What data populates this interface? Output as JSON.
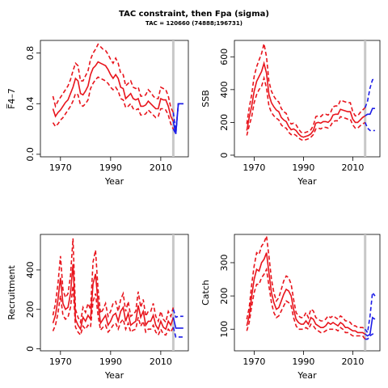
{
  "header": {
    "title": "TAC constraint, then Fpa (sigma)",
    "subtitle": "TAC = 120660 (74888;196731)"
  },
  "colors": {
    "historic": "#e8141c",
    "forecast": "#1c1ce8",
    "assessment_year_line": "#c8c8c8"
  },
  "chart_data": [
    {
      "type": "line",
      "id": "fbar",
      "xlabel": "Year",
      "ylabel": "F̅4–7",
      "xlim": [
        1962,
        2021
      ],
      "ylim": [
        -0.02,
        0.9
      ],
      "xticks": [
        1970,
        1990,
        2010
      ],
      "yticks": [
        0.0,
        0.4,
        0.8
      ],
      "ytick_labels": [
        "0.0",
        "0.4",
        "0.8"
      ],
      "assessment_year": 2015,
      "historic": {
        "x": [
          1967,
          1968,
          1969,
          1970,
          1971,
          1972,
          1973,
          1974,
          1975,
          1976,
          1977,
          1978,
          1979,
          1980,
          1981,
          1982,
          1983,
          1984,
          1985,
          1986,
          1987,
          1988,
          1989,
          1990,
          1991,
          1992,
          1993,
          1994,
          1995,
          1996,
          1997,
          1998,
          1999,
          2000,
          2001,
          2002,
          2003,
          2004,
          2005,
          2006,
          2007,
          2008,
          2009,
          2010,
          2011,
          2012,
          2013,
          2014,
          2015
        ],
        "median": [
          0.36,
          0.3,
          0.33,
          0.35,
          0.38,
          0.41,
          0.43,
          0.48,
          0.53,
          0.6,
          0.58,
          0.48,
          0.47,
          0.5,
          0.54,
          0.63,
          0.68,
          0.7,
          0.73,
          0.72,
          0.71,
          0.7,
          0.67,
          0.63,
          0.6,
          0.63,
          0.6,
          0.53,
          0.52,
          0.44,
          0.46,
          0.48,
          0.44,
          0.43,
          0.44,
          0.38,
          0.38,
          0.39,
          0.42,
          0.4,
          0.38,
          0.36,
          0.36,
          0.44,
          0.43,
          0.43,
          0.38,
          0.3,
          0.26
        ],
        "lower": [
          0.25,
          0.22,
          0.24,
          0.27,
          0.29,
          0.32,
          0.35,
          0.38,
          0.42,
          0.48,
          0.47,
          0.39,
          0.38,
          0.4,
          0.43,
          0.52,
          0.56,
          0.59,
          0.61,
          0.6,
          0.59,
          0.58,
          0.56,
          0.53,
          0.51,
          0.53,
          0.5,
          0.44,
          0.43,
          0.37,
          0.38,
          0.4,
          0.36,
          0.35,
          0.36,
          0.31,
          0.31,
          0.32,
          0.35,
          0.33,
          0.31,
          0.29,
          0.3,
          0.36,
          0.36,
          0.35,
          0.31,
          0.24,
          0.2
        ],
        "upper": [
          0.46,
          0.38,
          0.42,
          0.45,
          0.48,
          0.51,
          0.54,
          0.59,
          0.66,
          0.72,
          0.7,
          0.58,
          0.58,
          0.62,
          0.66,
          0.75,
          0.8,
          0.83,
          0.87,
          0.85,
          0.83,
          0.82,
          0.79,
          0.75,
          0.72,
          0.76,
          0.72,
          0.64,
          0.63,
          0.54,
          0.56,
          0.58,
          0.53,
          0.52,
          0.53,
          0.46,
          0.46,
          0.47,
          0.51,
          0.49,
          0.46,
          0.44,
          0.44,
          0.53,
          0.52,
          0.51,
          0.46,
          0.37,
          0.33
        ]
      },
      "forecast": {
        "x": [
          2015,
          2016,
          2017,
          2018,
          2019
        ],
        "median": [
          0.26,
          0.16,
          0.4,
          0.4,
          0.4
        ],
        "lower": [
          0.2,
          0.16,
          0.4,
          0.4,
          0.4
        ],
        "upper": [
          0.33,
          0.18,
          0.4,
          0.4,
          0.4
        ]
      }
    },
    {
      "type": "line",
      "id": "ssb",
      "xlabel": "Year",
      "ylabel": "SSB",
      "xlim": [
        1962,
        2021
      ],
      "ylim": [
        -10,
        700
      ],
      "xticks": [
        1970,
        1990,
        2010
      ],
      "yticks": [
        0,
        200,
        400,
        600
      ],
      "ytick_labels": [
        "0",
        "200",
        "400",
        "600"
      ],
      "assessment_year": 2015,
      "historic": {
        "x": [
          1967,
          1968,
          1969,
          1970,
          1971,
          1972,
          1973,
          1974,
          1975,
          1976,
          1977,
          1978,
          1979,
          1980,
          1981,
          1982,
          1983,
          1984,
          1985,
          1986,
          1987,
          1988,
          1989,
          1990,
          1991,
          1992,
          1993,
          1994,
          1995,
          1996,
          1997,
          1998,
          1999,
          2000,
          2001,
          2002,
          2003,
          2004,
          2005,
          2006,
          2007,
          2008,
          2009,
          2010,
          2011,
          2012,
          2013,
          2014,
          2015
        ],
        "median": [
          150,
          230,
          300,
          390,
          450,
          480,
          510,
          560,
          500,
          370,
          320,
          295,
          275,
          265,
          230,
          215,
          205,
          175,
          155,
          160,
          150,
          130,
          115,
          110,
          115,
          120,
          130,
          150,
          195,
          200,
          195,
          205,
          205,
          200,
          215,
          245,
          250,
          250,
          280,
          275,
          270,
          265,
          265,
          220,
          200,
          200,
          215,
          230,
          240
        ],
        "lower": [
          120,
          180,
          235,
          320,
          370,
          400,
          420,
          470,
          410,
          300,
          260,
          240,
          225,
          215,
          185,
          170,
          165,
          140,
          125,
          130,
          120,
          105,
          95,
          90,
          95,
          100,
          110,
          125,
          160,
          165,
          160,
          170,
          170,
          165,
          180,
          205,
          210,
          210,
          235,
          230,
          225,
          220,
          220,
          185,
          165,
          165,
          180,
          190,
          200
        ],
        "upper": [
          190,
          290,
          370,
          480,
          540,
          580,
          620,
          680,
          600,
          450,
          390,
          360,
          335,
          325,
          285,
          265,
          255,
          215,
          190,
          195,
          185,
          160,
          140,
          135,
          140,
          145,
          155,
          180,
          235,
          240,
          235,
          250,
          250,
          245,
          260,
          295,
          300,
          300,
          335,
          330,
          325,
          320,
          320,
          265,
          240,
          240,
          260,
          275,
          290
        ]
      },
      "forecast": {
        "x": [
          2015,
          2016,
          2017,
          2018,
          2019
        ],
        "median": [
          240,
          250,
          250,
          285,
          285
        ],
        "lower": [
          200,
          165,
          150,
          150,
          150
        ],
        "upper": [
          290,
          330,
          410,
          460,
          465
        ]
      }
    },
    {
      "type": "line",
      "id": "recruitment",
      "xlabel": "Year",
      "ylabel": "Recruitment",
      "xlim": [
        1962,
        2021
      ],
      "ylim": [
        -10,
        580
      ],
      "xticks": [
        1970,
        1990,
        2010
      ],
      "yticks": [
        0,
        200,
        400
      ],
      "ytick_labels": [
        "0",
        "200",
        "400"
      ],
      "assessment_year": 2015,
      "historic": {
        "x": [
          1967,
          1968,
          1969,
          1970,
          1971,
          1972,
          1973,
          1974,
          1975,
          1976,
          1977,
          1978,
          1979,
          1980,
          1981,
          1982,
          1983,
          1984,
          1985,
          1986,
          1987,
          1988,
          1989,
          1990,
          1991,
          1992,
          1993,
          1994,
          1995,
          1996,
          1997,
          1998,
          1999,
          2000,
          2001,
          2002,
          2003,
          2004,
          2005,
          2006,
          2007,
          2008,
          2009,
          2010,
          2011,
          2012,
          2013,
          2014,
          2015
        ],
        "median": [
          130,
          170,
          250,
          360,
          230,
          200,
          210,
          280,
          430,
          150,
          120,
          100,
          160,
          140,
          170,
          150,
          330,
          380,
          230,
          130,
          150,
          170,
          120,
          140,
          170,
          180,
          140,
          190,
          210,
          140,
          180,
          120,
          130,
          140,
          220,
          160,
          190,
          120,
          140,
          140,
          170,
          120,
          100,
          140,
          110,
          100,
          140,
          120,
          160
        ],
        "lower": [
          90,
          120,
          180,
          270,
          170,
          150,
          160,
          210,
          320,
          110,
          85,
          70,
          115,
          100,
          120,
          110,
          240,
          280,
          170,
          95,
          110,
          120,
          85,
          100,
          120,
          130,
          100,
          135,
          150,
          100,
          130,
          85,
          95,
          100,
          160,
          115,
          140,
          85,
          100,
          100,
          120,
          85,
          70,
          100,
          75,
          70,
          100,
          85,
          110
        ],
        "upper": [
          170,
          230,
          330,
          470,
          300,
          260,
          280,
          370,
          560,
          200,
          160,
          135,
          210,
          185,
          230,
          200,
          440,
          500,
          300,
          180,
          200,
          230,
          165,
          190,
          230,
          240,
          190,
          250,
          280,
          190,
          240,
          165,
          175,
          190,
          290,
          210,
          250,
          165,
          190,
          190,
          230,
          165,
          140,
          190,
          150,
          135,
          190,
          165,
          210
        ]
      },
      "forecast": {
        "x": [
          2015,
          2016,
          2017,
          2018,
          2019
        ],
        "median": [
          160,
          105,
          105,
          105,
          105
        ],
        "lower": [
          110,
          60,
          60,
          60,
          60
        ],
        "upper": [
          200,
          160,
          165,
          165,
          165
        ]
      }
    },
    {
      "type": "line",
      "id": "catch",
      "xlabel": "Year",
      "ylabel": "Catch",
      "xlim": [
        1962,
        2021
      ],
      "ylim": [
        35,
        385
      ],
      "xticks": [
        1970,
        1990,
        2010
      ],
      "yticks": [
        100,
        200,
        300
      ],
      "ytick_labels": [
        "100",
        "200",
        "300"
      ],
      "assessment_year": 2015,
      "historic": {
        "x": [
          1967,
          1968,
          1969,
          1970,
          1971,
          1972,
          1973,
          1974,
          1975,
          1976,
          1977,
          1978,
          1979,
          1980,
          1981,
          1982,
          1983,
          1984,
          1985,
          1986,
          1987,
          1988,
          1989,
          1990,
          1991,
          1992,
          1993,
          1994,
          1995,
          1996,
          1997,
          1998,
          1999,
          2000,
          2001,
          2002,
          2003,
          2004,
          2005,
          2006,
          2007,
          2008,
          2009,
          2010,
          2011,
          2012,
          2013,
          2014,
          2015
        ],
        "median": [
          110,
          140,
          200,
          250,
          280,
          275,
          300,
          310,
          330,
          270,
          210,
          180,
          160,
          165,
          185,
          205,
          220,
          215,
          200,
          160,
          130,
          120,
          115,
          115,
          125,
          115,
          135,
          130,
          115,
          110,
          105,
          105,
          110,
          120,
          115,
          120,
          115,
          110,
          120,
          115,
          105,
          105,
          100,
          95,
          95,
          90,
          90,
          90,
          85
        ],
        "lower": [
          95,
          120,
          170,
          210,
          235,
          235,
          255,
          265,
          280,
          230,
          180,
          150,
          135,
          140,
          155,
          170,
          185,
          180,
          170,
          135,
          110,
          100,
          100,
          100,
          105,
          100,
          115,
          110,
          100,
          95,
          90,
          90,
          95,
          100,
          100,
          100,
          100,
          95,
          105,
          100,
          90,
          90,
          85,
          80,
          80,
          80,
          80,
          80,
          70
        ],
        "upper": [
          130,
          165,
          235,
          290,
          330,
          325,
          350,
          360,
          380,
          320,
          250,
          210,
          185,
          195,
          220,
          245,
          260,
          255,
          235,
          190,
          150,
          140,
          135,
          135,
          150,
          135,
          160,
          155,
          135,
          130,
          125,
          125,
          130,
          140,
          135,
          140,
          135,
          130,
          140,
          135,
          125,
          125,
          120,
          110,
          110,
          105,
          105,
          105,
          100
        ]
      },
      "forecast": {
        "x": [
          2015,
          2016,
          2017,
          2018,
          2019
        ],
        "median": [
          85,
          80,
          85,
          135,
          130
        ],
        "lower": [
          70,
          70,
          80,
          85,
          90
        ],
        "upper": [
          100,
          90,
          140,
          210,
          200
        ]
      }
    }
  ]
}
